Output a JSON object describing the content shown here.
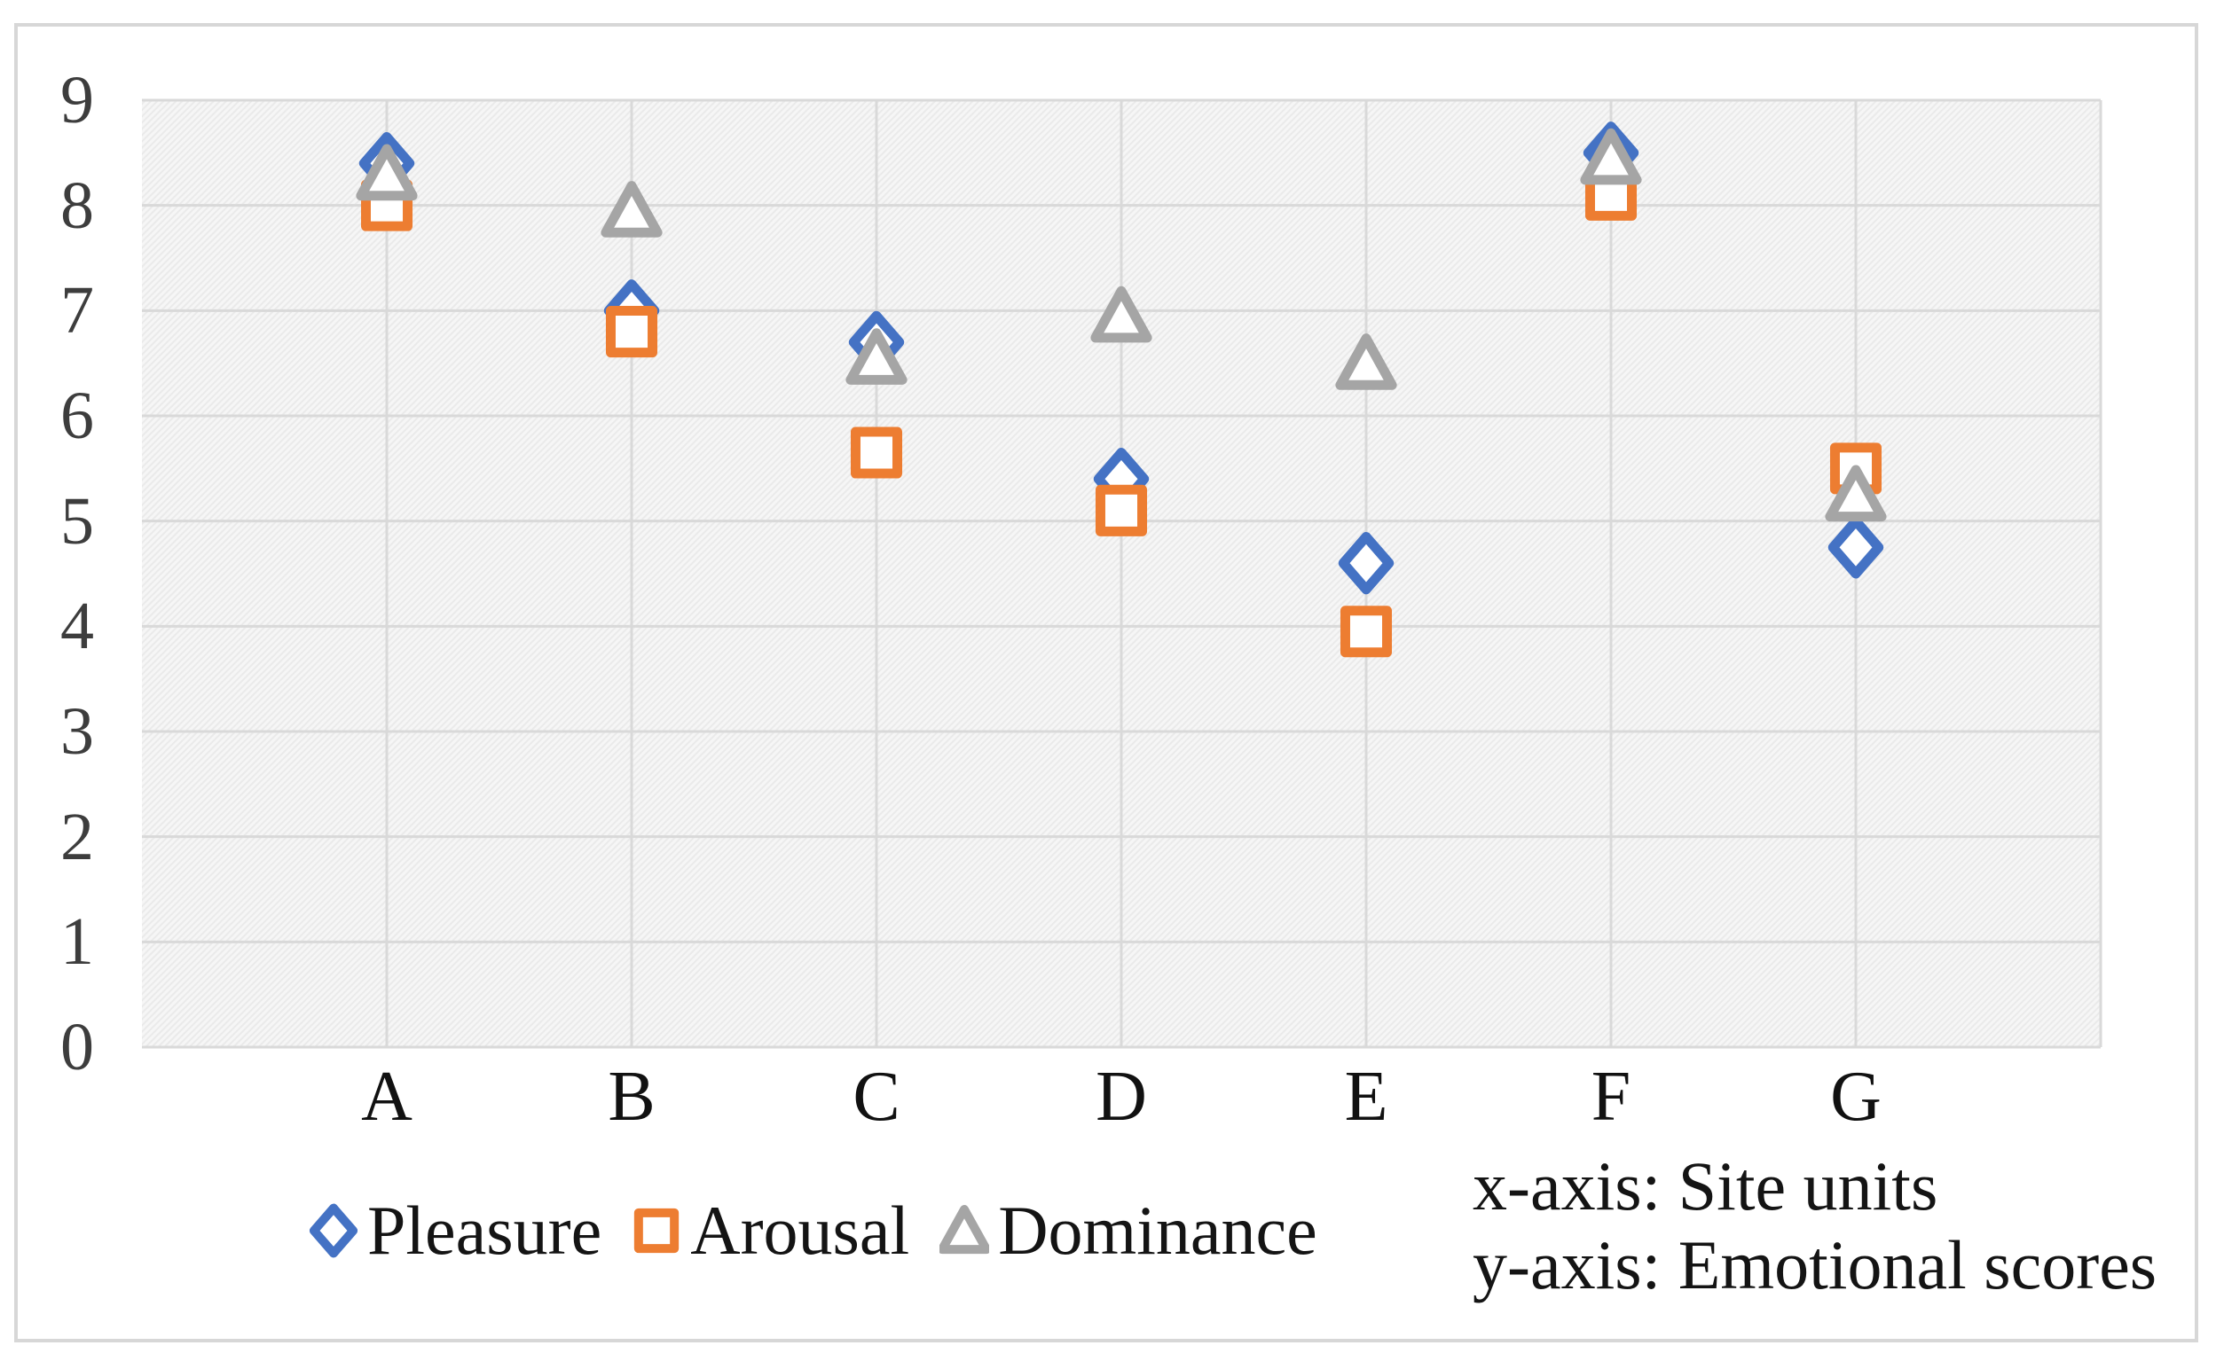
{
  "chart_data": {
    "type": "scatter",
    "categories": [
      "A",
      "B",
      "C",
      "D",
      "E",
      "F",
      "G"
    ],
    "series": [
      {
        "name": "Pleasure",
        "marker": "diamond",
        "color": "#4472C4",
        "values": [
          8.4,
          7.0,
          6.7,
          5.4,
          4.6,
          8.5,
          4.75
        ]
      },
      {
        "name": "Arousal",
        "marker": "square",
        "color": "#ED7D31",
        "values": [
          8.0,
          6.8,
          5.65,
          5.1,
          3.95,
          8.1,
          5.5
        ]
      },
      {
        "name": "Dominance",
        "marker": "triangle",
        "color": "#A5A5A5",
        "values": [
          8.3,
          7.95,
          6.55,
          6.95,
          6.5,
          8.45,
          5.25
        ]
      }
    ],
    "ylim": [
      0,
      9
    ],
    "yticks": [
      9,
      8,
      7,
      6,
      5,
      4,
      3,
      2,
      1,
      0
    ],
    "grid": true,
    "legend_position": "bottom",
    "plot_background": "light diagonal hatch",
    "gridline_color": "#d9d9d9",
    "xlabel": "",
    "ylabel": "",
    "title": ""
  },
  "annotations": {
    "line1": "x-axis: Site units",
    "line2": "y-axis: Emotional scores"
  },
  "colors": {
    "pleasure": "#4472C4",
    "arousal": "#ED7D31",
    "dominance": "#A5A5A5",
    "gridline": "#d9d9d9",
    "frame_border": "#d7d7d7",
    "tick_text": "#3d3d3d",
    "body_text": "#141414"
  }
}
